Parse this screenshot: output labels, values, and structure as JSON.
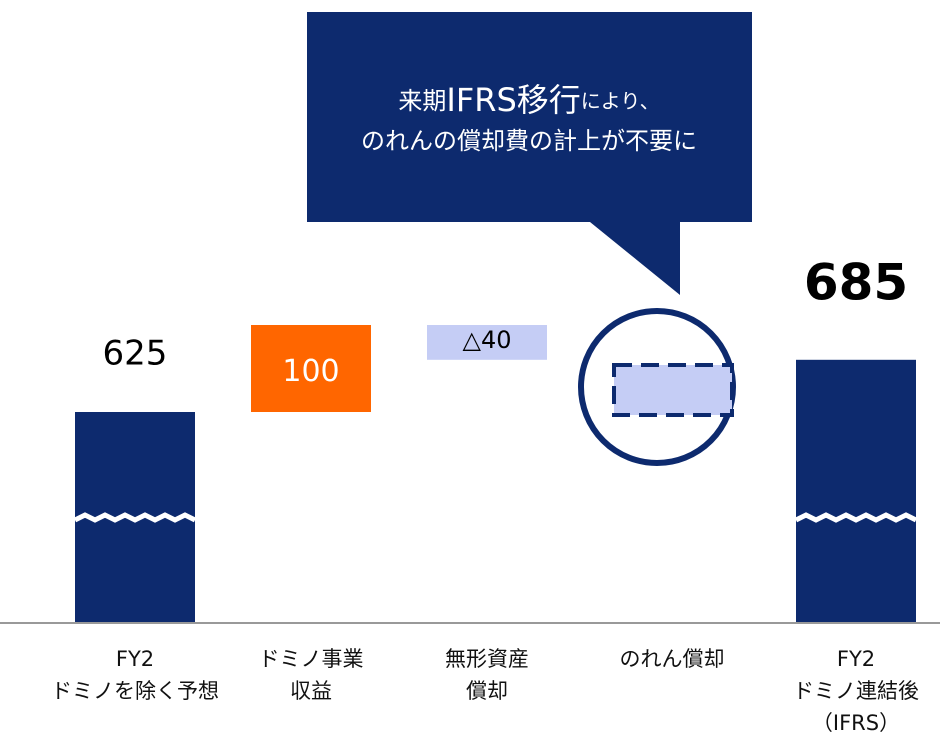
{
  "chart_data": {
    "type": "waterfall",
    "categories": [
      "FY2\nドミノを除く予想",
      "ドミノ事業\n収益",
      "無形資産\n償却",
      "のれん償却",
      "FY2\nドミノ連結後\n（IFRS）"
    ],
    "values": [
      625,
      100,
      -40,
      null,
      685
    ],
    "value_labels": [
      "625",
      "100",
      "△40",
      null,
      "685"
    ],
    "kinds": [
      "total",
      "delta",
      "delta",
      "delta",
      "total"
    ],
    "colors": [
      "#0d2a6e",
      "#ff6600",
      "#c5cdf5",
      null,
      "#0d2a6e"
    ],
    "annotation": [
      [
        "来期",
        "IFRS移行",
        "により、"
      ],
      [
        "のれんの償却費の計上が不要に"
      ]
    ]
  }
}
